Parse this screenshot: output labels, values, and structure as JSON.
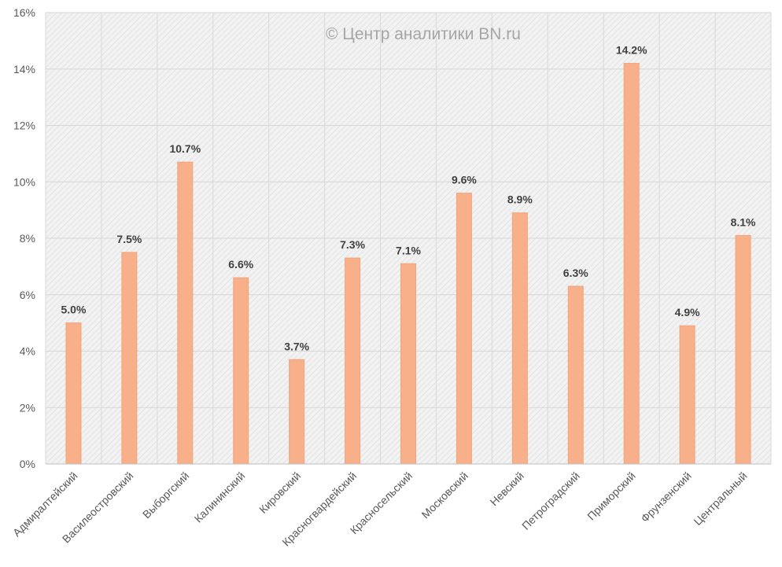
{
  "colors": {
    "bar": "#f7b08a",
    "bar_stroke": "#f3a47a",
    "plot_background": "#f2f2f2",
    "gridline": "#d6d6d6"
  },
  "chart_data": {
    "type": "bar",
    "watermark": "© Центр аналитики BN.ru",
    "title": "",
    "xlabel": "",
    "ylabel": "",
    "categories": [
      "Адмиралтейский",
      "Василеостровский",
      "Выборгский",
      "Калининский",
      "Кировский",
      "Красногвардейский",
      "Красносельский",
      "Московский",
      "Невский",
      "Петроградский",
      "Приморский",
      "Фрунзенский",
      "Центральный"
    ],
    "values": [
      5.0,
      7.5,
      10.7,
      6.6,
      3.7,
      7.3,
      7.1,
      9.6,
      8.9,
      6.3,
      14.2,
      4.9,
      8.1
    ],
    "data_labels": [
      "5.0%",
      "7.5%",
      "10.7%",
      "6.6%",
      "3.7%",
      "7.3%",
      "7.1%",
      "9.6%",
      "8.9%",
      "6.3%",
      "14.2%",
      "4.9%",
      "8.1%"
    ],
    "ylim": [
      0,
      16
    ],
    "yticks": [
      0,
      2,
      4,
      6,
      8,
      10,
      12,
      14,
      16
    ],
    "ytick_labels": [
      "0%",
      "2%",
      "4%",
      "6%",
      "8%",
      "10%",
      "12%",
      "14%",
      "16%"
    ],
    "grid": true,
    "legend": "none"
  }
}
